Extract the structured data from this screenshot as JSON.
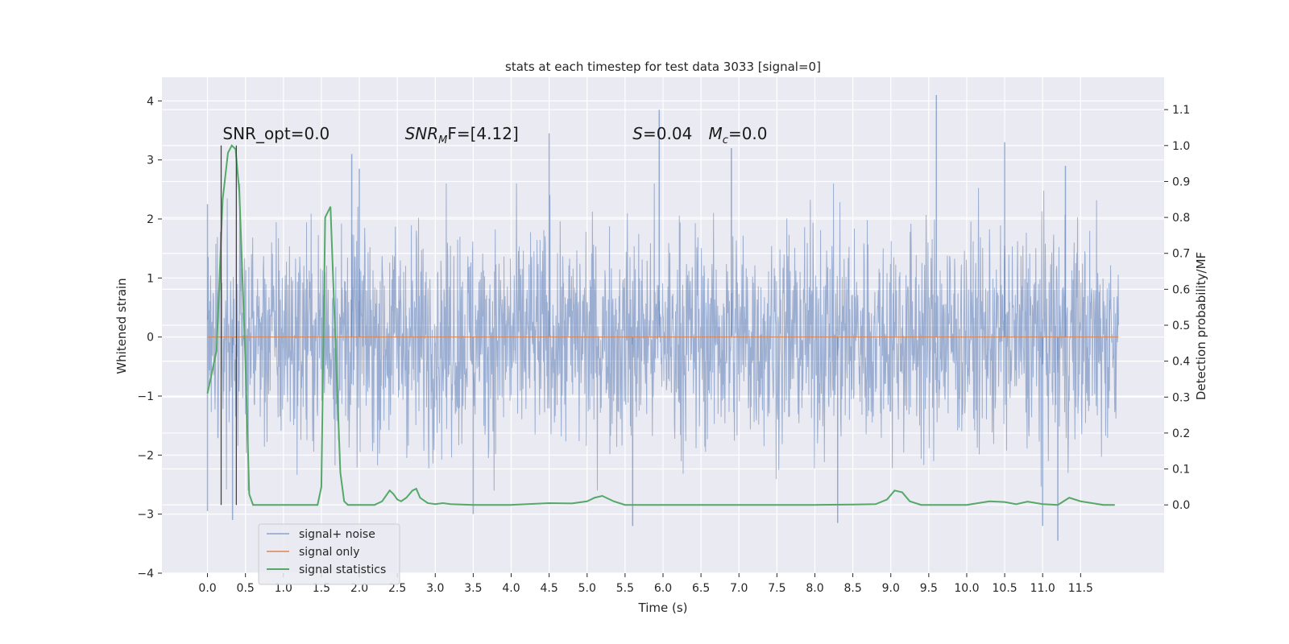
{
  "chart_data": {
    "type": "line",
    "title": "stats at each timestep for test data 3033 [signal=0]",
    "xlabel": "Time (s)",
    "ylabel": "Whitened strain",
    "y2label": "Detection probability/MF",
    "xlim": [
      -0.6,
      12.6
    ],
    "ylim": [
      -4.0,
      4.4
    ],
    "y2lim": [
      -0.19,
      1.19
    ],
    "x_ticks": [
      0.0,
      0.5,
      1.0,
      1.5,
      2.0,
      2.5,
      3.0,
      3.5,
      4.0,
      4.5,
      5.0,
      5.5,
      6.0,
      6.5,
      7.0,
      7.5,
      8.0,
      8.5,
      9.0,
      9.5,
      10.0,
      10.5,
      11.0,
      11.5
    ],
    "x_tick_labels": [
      "0.0",
      "0.5",
      "1.0",
      "1.5",
      "2.0",
      "2.5",
      "3.0",
      "3.5",
      "4.0",
      "4.5",
      "5.0",
      "5.5",
      "6.0",
      "6.5",
      "7.0",
      "7.5",
      "8.0",
      "8.5",
      "9.0",
      "9.5",
      "10.0",
      "10.5",
      "11.0",
      "11.5"
    ],
    "y_ticks": [
      -4,
      -3,
      -2,
      -1,
      0,
      1,
      2,
      3,
      4
    ],
    "y_tick_labels": [
      "−4",
      "−3",
      "−2",
      "−1",
      "0",
      "1",
      "2",
      "3",
      "4"
    ],
    "y2_ticks": [
      0.0,
      0.1,
      0.2,
      0.3,
      0.4,
      0.5,
      0.6,
      0.7,
      0.8,
      0.9,
      1.0,
      1.1
    ],
    "y2_tick_labels": [
      "0.0",
      "0.1",
      "0.2",
      "0.3",
      "0.4",
      "0.5",
      "0.6",
      "0.7",
      "0.8",
      "0.9",
      "1.0",
      "1.1"
    ],
    "grid": true,
    "legend_position": "lower-left",
    "series": [
      {
        "name": "signal+ noise",
        "color": "#4c72b0",
        "axis": "left",
        "x_range": [
          0.0,
          12.0
        ],
        "typical_amplitude": 1.5,
        "peaks": [
          {
            "x": 0.0,
            "y": 2.25
          },
          {
            "x": 0.0,
            "y": -2.95
          },
          {
            "x": 0.33,
            "y": -3.1
          },
          {
            "x": 1.9,
            "y": 3.1
          },
          {
            "x": 2.0,
            "y": 2.85
          },
          {
            "x": 3.5,
            "y": -3.0
          },
          {
            "x": 4.5,
            "y": 3.45
          },
          {
            "x": 5.6,
            "y": -3.2
          },
          {
            "x": 5.95,
            "y": 3.85
          },
          {
            "x": 6.9,
            "y": 3.2
          },
          {
            "x": 8.3,
            "y": -3.15
          },
          {
            "x": 9.6,
            "y": 4.1
          },
          {
            "x": 10.5,
            "y": 3.3
          },
          {
            "x": 11.0,
            "y": -3.2
          },
          {
            "x": 11.2,
            "y": -3.45
          },
          {
            "x": 11.3,
            "y": 2.9
          }
        ]
      },
      {
        "name": "signal only",
        "color": "#dd8452",
        "axis": "left",
        "x": [
          0.0,
          12.0
        ],
        "y": [
          0.0,
          0.0
        ]
      },
      {
        "name": "signal statistics",
        "color": "#55a868",
        "axis": "right",
        "x": [
          0.0,
          0.12,
          0.2,
          0.27,
          0.32,
          0.37,
          0.42,
          0.5,
          0.55,
          0.6,
          0.7,
          1.0,
          1.3,
          1.45,
          1.5,
          1.55,
          1.62,
          1.7,
          1.75,
          1.8,
          1.85,
          1.9,
          2.0,
          2.2,
          2.3,
          2.4,
          2.45,
          2.5,
          2.55,
          2.62,
          2.7,
          2.75,
          2.8,
          2.9,
          3.0,
          3.1,
          3.2,
          3.5,
          4.0,
          4.5,
          4.8,
          5.0,
          5.1,
          5.2,
          5.35,
          5.5,
          6.0,
          6.5,
          7.0,
          7.5,
          8.0,
          8.5,
          8.8,
          8.95,
          9.05,
          9.15,
          9.25,
          9.4,
          9.6,
          10.0,
          10.3,
          10.5,
          10.65,
          10.8,
          11.0,
          11.2,
          11.35,
          11.5,
          11.65,
          11.8,
          11.95
        ],
        "y": [
          0.31,
          0.43,
          0.85,
          0.98,
          1.0,
          0.99,
          0.87,
          0.4,
          0.03,
          0.0,
          0.0,
          0.0,
          0.0,
          0.0,
          0.05,
          0.8,
          0.83,
          0.37,
          0.09,
          0.01,
          0.0,
          0.0,
          0.0,
          0.0,
          0.01,
          0.04,
          0.03,
          0.015,
          0.01,
          0.02,
          0.04,
          0.045,
          0.02,
          0.005,
          0.002,
          0.005,
          0.002,
          0.0,
          0.0,
          0.005,
          0.004,
          0.01,
          0.02,
          0.025,
          0.01,
          0.0,
          0.0,
          0.0,
          0.0,
          0.0,
          0.0,
          0.001,
          0.002,
          0.015,
          0.04,
          0.035,
          0.01,
          0.0,
          0.0,
          0.0,
          0.01,
          0.008,
          0.002,
          0.009,
          0.002,
          0.0,
          0.02,
          0.01,
          0.005,
          0.0,
          0.0
        ]
      }
    ],
    "vlines": [
      {
        "x": 0.18,
        "ymin": 0.0,
        "ymax": 1.0,
        "color": "#444444"
      },
      {
        "x": 0.38,
        "ymin": 0.0,
        "ymax": 1.0,
        "color": "#444444"
      }
    ],
    "annotations": [
      {
        "text": "SNR_opt=0.0",
        "x": 0.2,
        "y": 3.35
      },
      {
        "text": "SNR",
        "sub": "M",
        "after": "F=[4.12]",
        "x": 2.6,
        "y": 3.35
      },
      {
        "text": "S",
        "after": "=0.04",
        "x": 5.6,
        "y": 3.35
      },
      {
        "text": "M",
        "sub": "c",
        "after": "=0.0",
        "x": 6.6,
        "y": 3.35
      }
    ]
  }
}
